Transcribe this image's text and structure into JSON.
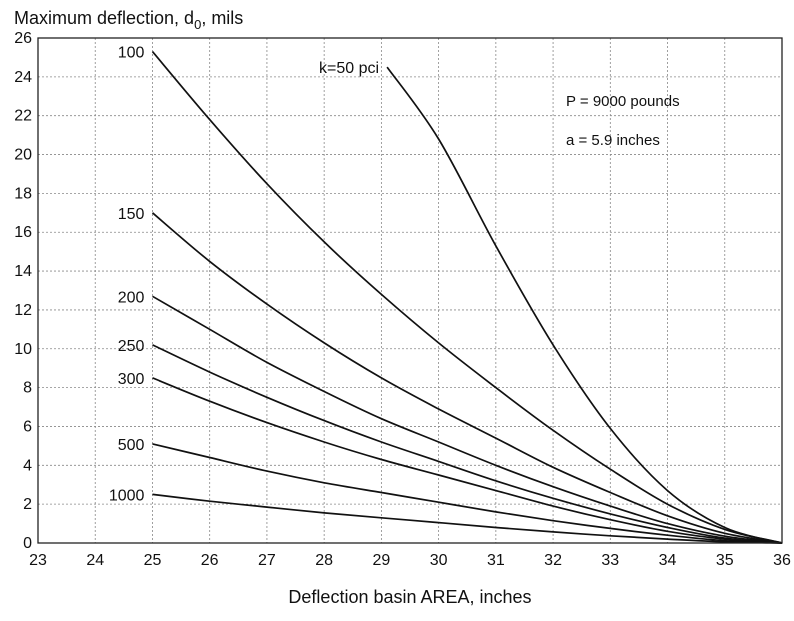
{
  "chart_data": {
    "type": "line",
    "ylabel_main": "Maximum deflection, d",
    "ylabel_sub": "0",
    "ylabel_unit": ", mils",
    "xlabel": "Deflection basin AREA, inches",
    "xlim": [
      23,
      36
    ],
    "ylim": [
      0,
      26
    ],
    "x_ticks": [
      23,
      24,
      25,
      26,
      27,
      28,
      29,
      30,
      31,
      32,
      33,
      34,
      35,
      36
    ],
    "y_ticks": [
      0,
      2,
      4,
      6,
      8,
      10,
      12,
      14,
      16,
      18,
      20,
      22,
      24,
      26
    ],
    "grid": true,
    "annotations": [
      "P = 9000 pounds",
      "a = 5.9 inches"
    ],
    "series": [
      {
        "name": "k=50 pci",
        "x": [
          29.1,
          30,
          31,
          32,
          33,
          34,
          35,
          36
        ],
        "y": [
          24.5,
          20.8,
          15.3,
          10.2,
          5.9,
          2.7,
          0.8,
          0
        ]
      },
      {
        "name": "100",
        "x": [
          25,
          26,
          27,
          28,
          29,
          30,
          31,
          32,
          33,
          34,
          35,
          36
        ],
        "y": [
          25.3,
          21.8,
          18.5,
          15.5,
          12.8,
          10.3,
          8.0,
          5.8,
          3.8,
          2.0,
          0.7,
          0
        ]
      },
      {
        "name": "150",
        "x": [
          25,
          26,
          27,
          28,
          29,
          30,
          31,
          32,
          33,
          34,
          35,
          36
        ],
        "y": [
          17.0,
          14.5,
          12.3,
          10.3,
          8.5,
          6.9,
          5.4,
          3.9,
          2.6,
          1.4,
          0.5,
          0
        ]
      },
      {
        "name": "200",
        "x": [
          25,
          26,
          27,
          28,
          29,
          30,
          31,
          32,
          33,
          34,
          35,
          36
        ],
        "y": [
          12.7,
          11.0,
          9.3,
          7.8,
          6.4,
          5.2,
          4.0,
          2.9,
          1.9,
          1.0,
          0.35,
          0
        ]
      },
      {
        "name": "250",
        "x": [
          25,
          26,
          27,
          28,
          29,
          30,
          31,
          32,
          33,
          34,
          35,
          36
        ],
        "y": [
          10.2,
          8.8,
          7.5,
          6.3,
          5.2,
          4.2,
          3.2,
          2.3,
          1.5,
          0.8,
          0.25,
          0
        ]
      },
      {
        "name": "300",
        "x": [
          25,
          26,
          27,
          28,
          29,
          30,
          31,
          32,
          33,
          34,
          35,
          36
        ],
        "y": [
          8.5,
          7.3,
          6.2,
          5.2,
          4.3,
          3.5,
          2.7,
          1.9,
          1.2,
          0.6,
          0.2,
          0
        ]
      },
      {
        "name": "500",
        "x": [
          25,
          26,
          27,
          28,
          29,
          30,
          31,
          32,
          33,
          34,
          35,
          36
        ],
        "y": [
          5.1,
          4.4,
          3.7,
          3.1,
          2.6,
          2.1,
          1.6,
          1.15,
          0.75,
          0.4,
          0.12,
          0
        ]
      },
      {
        "name": "1000",
        "x": [
          25,
          26,
          27,
          28,
          29,
          30,
          31,
          32,
          33,
          34,
          35,
          36
        ],
        "y": [
          2.5,
          2.15,
          1.85,
          1.55,
          1.3,
          1.05,
          0.8,
          0.57,
          0.37,
          0.2,
          0.06,
          0
        ]
      }
    ]
  }
}
